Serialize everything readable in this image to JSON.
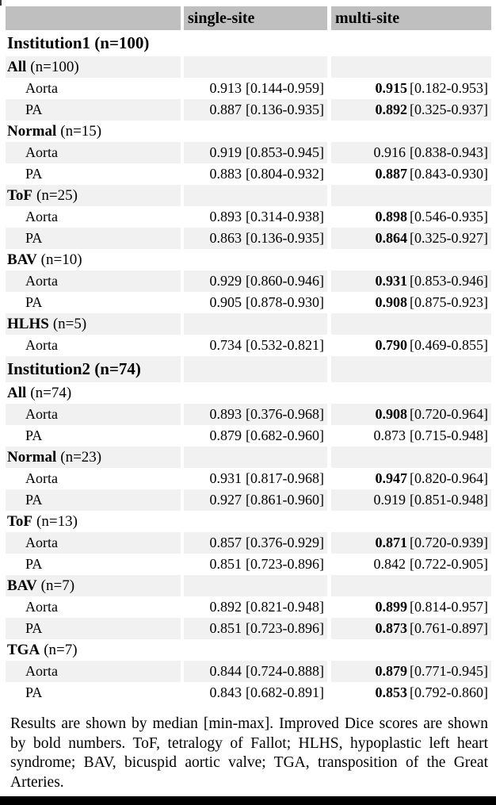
{
  "colors": {
    "header_bg": "#bfbfbf",
    "shaded_row_bg": "#f1f1f1",
    "text": "#000000",
    "bottom_bar": "#000000"
  },
  "table": {
    "header": {
      "col1": "",
      "col2": "single-site",
      "col3": "multi-site"
    },
    "rows": [
      {
        "type": "institution",
        "label": "Institution1",
        "n": "(n=100)"
      },
      {
        "type": "group",
        "label": "All",
        "n": "(n=100)"
      },
      {
        "type": "data",
        "label": "Aorta",
        "single_median": "0.913",
        "single_range": "[0.144-0.959]",
        "multi_median": "0.915",
        "multi_range": "[0.182-0.953]",
        "multi_bold": true
      },
      {
        "type": "data",
        "label": "PA",
        "single_median": "0.887",
        "single_range": "[0.136-0.935]",
        "multi_median": "0.892",
        "multi_range": "[0.325-0.937]",
        "multi_bold": true
      },
      {
        "type": "group",
        "label": "Normal",
        "n": "(n=15)"
      },
      {
        "type": "data",
        "label": "Aorta",
        "single_median": "0.919",
        "single_range": "[0.853-0.945]",
        "multi_median": "0.916",
        "multi_range": "[0.838-0.943]",
        "multi_bold": false
      },
      {
        "type": "data",
        "label": "PA",
        "single_median": "0.883",
        "single_range": "[0.804-0.932]",
        "multi_median": "0.887",
        "multi_range": "[0.843-0.930]",
        "multi_bold": true
      },
      {
        "type": "group",
        "label": "ToF",
        "n": "(n=25)"
      },
      {
        "type": "data",
        "label": "Aorta",
        "single_median": "0.893",
        "single_range": "[0.314-0.938]",
        "multi_median": "0.898",
        "multi_range": "[0.546-0.935]",
        "multi_bold": true
      },
      {
        "type": "data",
        "label": "PA",
        "single_median": "0.863",
        "single_range": "[0.136-0.935]",
        "multi_median": "0.864",
        "multi_range": "[0.325-0.927]",
        "multi_bold": true
      },
      {
        "type": "group",
        "label": "BAV",
        "n": "(n=10)"
      },
      {
        "type": "data",
        "label": "Aorta",
        "single_median": "0.929",
        "single_range": "[0.860-0.946]",
        "multi_median": "0.931",
        "multi_range": "[0.853-0.946]",
        "multi_bold": true
      },
      {
        "type": "data",
        "label": "PA",
        "single_median": "0.905",
        "single_range": "[0.878-0.930]",
        "multi_median": "0.908",
        "multi_range": "[0.875-0.923]",
        "multi_bold": true
      },
      {
        "type": "group",
        "label": "HLHS",
        "n": "(n=5)"
      },
      {
        "type": "data",
        "label": "Aorta",
        "single_median": "0.734",
        "single_range": "[0.532-0.821]",
        "multi_median": "0.790",
        "multi_range": "[0.469-0.855]",
        "multi_bold": true
      },
      {
        "type": "institution",
        "label": "Institution2",
        "n": "(n=74)"
      },
      {
        "type": "group",
        "label": "All",
        "n": "(n=74)"
      },
      {
        "type": "data",
        "label": "Aorta",
        "single_median": "0.893",
        "single_range": "[0.376-0.968]",
        "multi_median": "0.908",
        "multi_range": "[0.720-0.964]",
        "multi_bold": true
      },
      {
        "type": "data",
        "label": "PA",
        "single_median": "0.879",
        "single_range": "[0.682-0.960]",
        "multi_median": "0.873",
        "multi_range": "[0.715-0.948]",
        "multi_bold": false
      },
      {
        "type": "group",
        "label": "Normal",
        "n": "(n=23)"
      },
      {
        "type": "data",
        "label": "Aorta",
        "single_median": "0.931",
        "single_range": "[0.817-0.968]",
        "multi_median": "0.947",
        "multi_range": "[0.820-0.964]",
        "multi_bold": true
      },
      {
        "type": "data",
        "label": "PA",
        "single_median": "0.927",
        "single_range": "[0.861-0.960]",
        "multi_median": "0.919",
        "multi_range": "[0.851-0.948]",
        "multi_bold": false
      },
      {
        "type": "group",
        "label": "ToF",
        "n": "(n=13)"
      },
      {
        "type": "data",
        "label": "Aorta",
        "single_median": "0.857",
        "single_range": "[0.376-0.929]",
        "multi_median": "0.871",
        "multi_range": "[0.720-0.939]",
        "multi_bold": true
      },
      {
        "type": "data",
        "label": "PA",
        "single_median": "0.851",
        "single_range": "[0.723-0.896]",
        "multi_median": "0.842",
        "multi_range": "[0.722-0.905]",
        "multi_bold": false
      },
      {
        "type": "group",
        "label": "BAV",
        "n": "(n=7)"
      },
      {
        "type": "data",
        "label": "Aorta",
        "single_median": "0.892",
        "single_range": "[0.821-0.948]",
        "multi_median": "0.899",
        "multi_range": "[0.814-0.957]",
        "multi_bold": true
      },
      {
        "type": "data",
        "label": "PA",
        "single_median": "0.851",
        "single_range": "[0.723-0.896]",
        "multi_median": "0.873",
        "multi_range": "[0.761-0.897]",
        "multi_bold": true
      },
      {
        "type": "group",
        "label": "TGA",
        "n": "(n=7)"
      },
      {
        "type": "data",
        "label": "Aorta",
        "single_median": "0.844",
        "single_range": "[0.724-0.888]",
        "multi_median": "0.879",
        "multi_range": "[0.771-0.945]",
        "multi_bold": true
      },
      {
        "type": "data",
        "label": "PA",
        "single_median": "0.843",
        "single_range": "[0.682-0.891]",
        "multi_median": "0.853",
        "multi_range": "[0.792-0.860]",
        "multi_bold": true
      }
    ]
  },
  "footnote": "Results are shown by median [min-max]. Improved Dice scores are shown by bold numbers. ToF, tetralogy of Fallot; HLHS, hypoplastic left heart syndrome; BAV, bicuspid aortic valve; TGA, transposition of the Great Arteries."
}
